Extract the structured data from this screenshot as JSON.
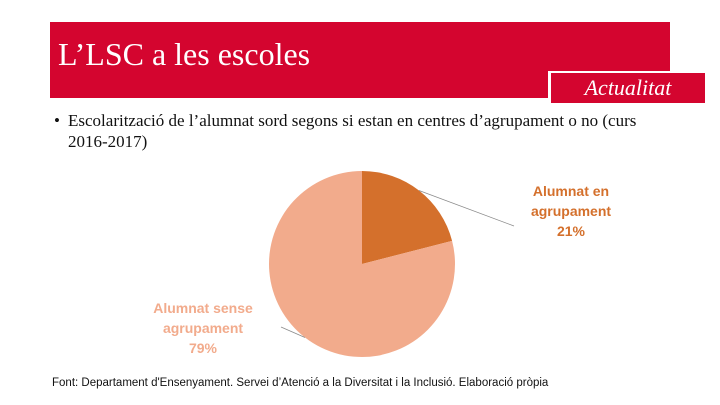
{
  "header": {
    "title": "L’LSC a les escoles",
    "badge": "Actualitat",
    "accent_color": "#d4052f"
  },
  "bullet": {
    "marker": "•",
    "text": "Escolarització de l’alumnat sord segons si estan en centres d’agrupament o no (curs 2016-2017)"
  },
  "chart_data": {
    "type": "pie",
    "slices": [
      {
        "label_lines": [
          "Alumnat en",
          "agrupament"
        ],
        "value": 21,
        "value_label": "21%",
        "color": "#d4702c",
        "label_color": "#d4702c"
      },
      {
        "label_lines": [
          "Alumnat sense",
          "agrupament"
        ],
        "value": 79,
        "value_label": "79%",
        "color": "#f2ab8c",
        "label_color": "#f2ab8c"
      }
    ],
    "start_angle_deg": 0,
    "direction": "clockwise",
    "legend": "none",
    "labels": "outside-with-leader-lines"
  },
  "footer": {
    "source": "Font: Departament d'Ensenyament. Servei d’Atenció a la Diversitat i la Inclusió. Elaboració pròpia"
  }
}
